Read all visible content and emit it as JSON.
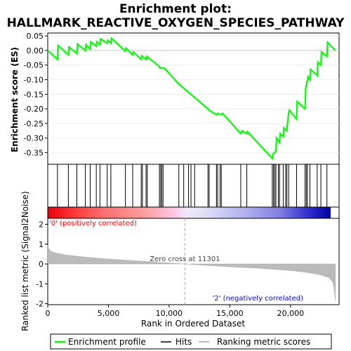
{
  "chart_data": {
    "type": "line",
    "title_line1": "Enrichment plot:",
    "title_line2": "HALLMARK_REACTIVE_OXYGEN_SPECIES_PATHWAY",
    "es_panel": {
      "ylabel": "Enrichment score (ES)",
      "ylim": [
        -0.39,
        0.06
      ],
      "yticks": [
        0.05,
        0.0,
        -0.05,
        -0.1,
        -0.15,
        -0.2,
        -0.25,
        -0.3,
        -0.35
      ],
      "ytick_labels": [
        "0.05",
        "0.00",
        "-0.05",
        "-0.10",
        "-0.15",
        "-0.20",
        "-0.25",
        "-0.30",
        "-0.35"
      ],
      "series_name": "Enrichment profile",
      "color": "#00ff00",
      "points": [
        [
          0,
          0.0
        ],
        [
          800,
          -0.03
        ],
        [
          850,
          0.018
        ],
        [
          1700,
          -0.015
        ],
        [
          1750,
          0.012
        ],
        [
          2400,
          -0.01
        ],
        [
          2450,
          0.022
        ],
        [
          3100,
          0.0
        ],
        [
          3150,
          0.02
        ],
        [
          3500,
          0.005
        ],
        [
          3550,
          0.03
        ],
        [
          4000,
          0.015
        ],
        [
          4050,
          0.03
        ],
        [
          4300,
          0.02
        ],
        [
          4350,
          0.04
        ],
        [
          4900,
          0.025
        ],
        [
          4950,
          0.035
        ],
        [
          5200,
          0.025
        ],
        [
          5250,
          0.042
        ],
        [
          6400,
          -0.002
        ],
        [
          6450,
          0.008
        ],
        [
          7000,
          -0.015
        ],
        [
          7050,
          -0.005
        ],
        [
          7700,
          -0.03
        ],
        [
          7750,
          -0.018
        ],
        [
          8100,
          -0.03
        ],
        [
          8150,
          -0.02
        ],
        [
          9200,
          -0.055
        ],
        [
          9250,
          -0.06
        ],
        [
          9600,
          -0.06
        ],
        [
          10800,
          -0.115
        ],
        [
          13200,
          -0.2
        ],
        [
          13300,
          -0.205
        ],
        [
          13900,
          -0.22
        ],
        [
          14000,
          -0.215
        ],
        [
          14300,
          -0.22
        ],
        [
          14400,
          -0.215
        ],
        [
          15900,
          -0.285
        ],
        [
          16000,
          -0.275
        ],
        [
          16400,
          -0.285
        ],
        [
          16450,
          -0.278
        ],
        [
          18500,
          -0.37
        ],
        [
          18550,
          -0.355
        ],
        [
          18800,
          -0.345
        ],
        [
          18850,
          -0.3
        ],
        [
          19100,
          -0.315
        ],
        [
          19150,
          -0.285
        ],
        [
          19400,
          -0.295
        ],
        [
          19450,
          -0.265
        ],
        [
          19700,
          -0.275
        ],
        [
          19750,
          -0.25
        ],
        [
          19850,
          -0.215
        ],
        [
          19900,
          -0.205
        ],
        [
          20500,
          -0.235
        ],
        [
          20550,
          -0.175
        ],
        [
          21200,
          -0.2
        ],
        [
          21250,
          -0.13
        ],
        [
          21400,
          -0.1
        ],
        [
          21450,
          -0.09
        ],
        [
          21600,
          -0.1
        ],
        [
          21650,
          -0.065
        ],
        [
          22200,
          -0.085
        ],
        [
          22250,
          -0.04
        ],
        [
          22500,
          -0.05
        ],
        [
          22550,
          -0.005
        ],
        [
          23000,
          -0.02
        ],
        [
          23050,
          0.028
        ],
        [
          23700,
          0.0
        ]
      ]
    },
    "hits": [
      800,
      1700,
      2400,
      3100,
      3500,
      4000,
      4300,
      4900,
      5200,
      6400,
      7000,
      7700,
      7800,
      8100,
      8200,
      9200,
      9300,
      9400,
      9500,
      10800,
      11200,
      11600,
      11800,
      12100,
      13200,
      13300,
      13900,
      14000,
      14200,
      14300,
      15900,
      16400,
      18500,
      18600,
      18700,
      18800,
      19000,
      19100,
      19400,
      19600,
      19700,
      19850,
      20500,
      21200,
      21300,
      21400,
      21600,
      22200,
      22500,
      23000
    ],
    "rank_panel": {
      "ylabel": "Ranked list metric (Signal2Noise)",
      "xlabel": "Rank in Ordered Dataset",
      "xlim": [
        0,
        24000
      ],
      "xticks": [
        0,
        5000,
        10000,
        15000,
        20000
      ],
      "xtick_labels": [
        "0",
        "5,000",
        "10,000",
        "15,000",
        "20,000"
      ],
      "ylim": [
        -2.05,
        2.3
      ],
      "yticks": [
        2,
        1,
        0,
        -1,
        -2
      ],
      "ytick_labels": [
        "2",
        "1",
        "0",
        "-1",
        "-2"
      ],
      "metric_points": [
        [
          0,
          0.95
        ],
        [
          100,
          0.75
        ],
        [
          300,
          0.62
        ],
        [
          700,
          0.55
        ],
        [
          1500,
          0.45
        ],
        [
          3000,
          0.35
        ],
        [
          5000,
          0.25
        ],
        [
          7000,
          0.17
        ],
        [
          9000,
          0.09
        ],
        [
          11301,
          0.0
        ],
        [
          13000,
          -0.07
        ],
        [
          15000,
          -0.14
        ],
        [
          17000,
          -0.2
        ],
        [
          19000,
          -0.28
        ],
        [
          20500,
          -0.36
        ],
        [
          21500,
          -0.44
        ],
        [
          22500,
          -0.55
        ],
        [
          23200,
          -0.7
        ],
        [
          23500,
          -0.95
        ],
        [
          23600,
          -1.3
        ],
        [
          23700,
          -1.85
        ]
      ],
      "zero_cross_rank": 11301,
      "zero_cross_label": "Zero cross at 11301",
      "pos_label": "'0' (positively correlated)",
      "pos_color": "#ff0000",
      "neg_label": "'2' (negatively correlated)",
      "neg_color": "#0000ff"
    },
    "legend": {
      "items": [
        {
          "label": "Enrichment profile",
          "color": "#00ff00"
        },
        {
          "label": "Hits",
          "color": "#000000"
        },
        {
          "label": "Ranking metric scores",
          "color": "#bbbbbb"
        }
      ]
    }
  }
}
